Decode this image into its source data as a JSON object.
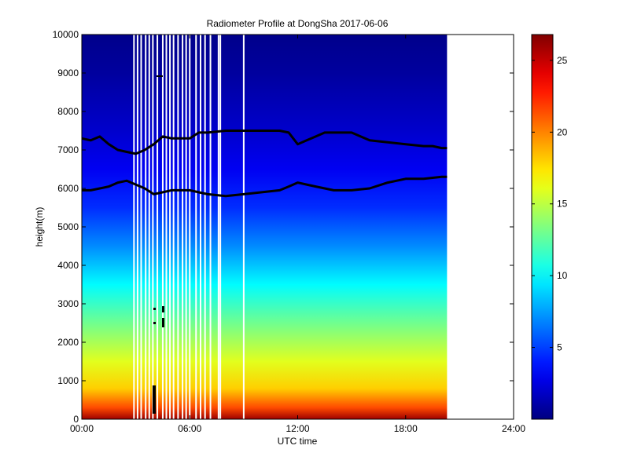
{
  "chart_data": {
    "type": "heatmap",
    "title": "Radiometer Profile at DongSha 2017-06-06",
    "xlabel": "UTC time",
    "ylabel": "height(m)",
    "xlim_hours": [
      0,
      24
    ],
    "ylim": [
      0,
      10000
    ],
    "x_ticks": [
      {
        "hours": 0,
        "label": "00:00"
      },
      {
        "hours": 6,
        "label": "06:00"
      },
      {
        "hours": 12,
        "label": "12:00"
      },
      {
        "hours": 18,
        "label": "18:00"
      },
      {
        "hours": 24,
        "label": "24:00"
      }
    ],
    "y_ticks": [
      0,
      1000,
      2000,
      3000,
      4000,
      5000,
      6000,
      7000,
      8000,
      9000,
      10000
    ],
    "data_end_hours": 20.3,
    "colorbar": {
      "min": 0,
      "max": 26.8,
      "colormap": "jet",
      "ticks": [
        5,
        10,
        15,
        20,
        25
      ]
    },
    "field_profile": [
      {
        "height": 0,
        "value": 26.0
      },
      {
        "height": 300,
        "value": 21.5
      },
      {
        "height": 800,
        "value": 18.0
      },
      {
        "height": 1500,
        "value": 16.0
      },
      {
        "height": 2500,
        "value": 13.0
      },
      {
        "height": 3500,
        "value": 10.0
      },
      {
        "height": 4500,
        "value": 7.0
      },
      {
        "height": 5500,
        "value": 4.5
      },
      {
        "height": 6500,
        "value": 3.0
      },
      {
        "height": 7500,
        "value": 2.0
      },
      {
        "height": 9000,
        "value": 0.8
      },
      {
        "height": 10000,
        "value": 0.3
      }
    ],
    "gap_times_hours": [
      2.9,
      3.1,
      3.3,
      3.55,
      3.75,
      3.95,
      4.2,
      4.5,
      4.7,
      4.9,
      5.1,
      5.35,
      5.6,
      5.8,
      6.0,
      6.35,
      6.6,
      6.85,
      7.15,
      7.6,
      7.7,
      9.0
    ],
    "series": [
      {
        "points": [
          [
            0,
            7300
          ],
          [
            0.5,
            7250
          ],
          [
            1,
            7350
          ],
          [
            1.5,
            7150
          ],
          [
            2,
            7000
          ],
          [
            2.5,
            6950
          ],
          [
            3,
            6900
          ],
          [
            3.5,
            7000
          ],
          [
            4,
            7150
          ],
          [
            4.5,
            7350
          ],
          [
            5,
            7300
          ],
          [
            6,
            7300
          ],
          [
            6.5,
            7450
          ],
          [
            7,
            7450
          ],
          [
            8,
            7500
          ],
          [
            9,
            7500
          ],
          [
            10,
            7500
          ],
          [
            11,
            7500
          ],
          [
            11.5,
            7450
          ],
          [
            12,
            7150
          ],
          [
            12.5,
            7250
          ],
          [
            13,
            7350
          ],
          [
            13.5,
            7450
          ],
          [
            14,
            7450
          ],
          [
            15,
            7450
          ],
          [
            15.5,
            7350
          ],
          [
            16,
            7250
          ],
          [
            17,
            7200
          ],
          [
            18,
            7150
          ],
          [
            19,
            7100
          ],
          [
            19.5,
            7100
          ],
          [
            20,
            7050
          ],
          [
            20.3,
            7050
          ]
        ]
      },
      {
        "points": [
          [
            0,
            5950
          ],
          [
            0.5,
            5950
          ],
          [
            1,
            6000
          ],
          [
            1.5,
            6050
          ],
          [
            2,
            6150
          ],
          [
            2.5,
            6200
          ],
          [
            3,
            6100
          ],
          [
            3.5,
            6000
          ],
          [
            4,
            5850
          ],
          [
            5,
            5950
          ],
          [
            6,
            5950
          ],
          [
            7,
            5850
          ],
          [
            8,
            5800
          ],
          [
            9,
            5850
          ],
          [
            10,
            5900
          ],
          [
            11,
            5950
          ],
          [
            11.5,
            6050
          ],
          [
            12,
            6150
          ],
          [
            12.5,
            6100
          ],
          [
            13,
            6050
          ],
          [
            14,
            5950
          ],
          [
            15,
            5950
          ],
          [
            16,
            6000
          ],
          [
            17,
            6150
          ],
          [
            18,
            6250
          ],
          [
            19,
            6250
          ],
          [
            20,
            6300
          ],
          [
            20.3,
            6300
          ]
        ]
      }
    ]
  }
}
